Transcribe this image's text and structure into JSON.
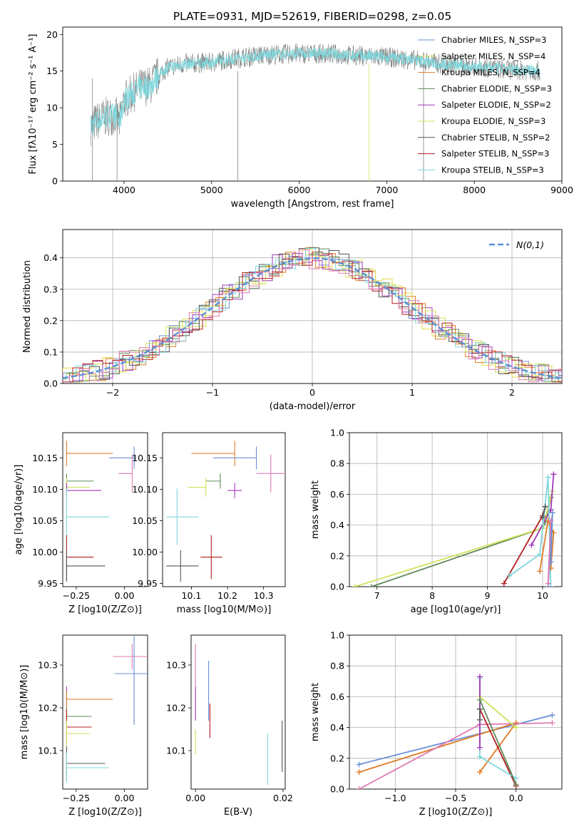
{
  "colors": {
    "chabrier_miles": "#6a8fd8",
    "salpeter_miles": "#e8d84a",
    "kroupa_miles": "#e07b24",
    "chabrier_elodie": "#5f8a5a",
    "salpeter_elodie": "#a236b8",
    "kroupa_elodie": "#cfe35a",
    "chabrier_stelib": "#555555",
    "salpeter_stelib": "#b21e1e",
    "kroupa_stelib": "#7fd7dc",
    "spectrum_grey": "#808080",
    "pink": "#e07ab0",
    "gauss": "#5b8fd6",
    "grid": "#b0b0b0"
  },
  "chart_data": [
    {
      "id": "spectrum",
      "type": "line",
      "title": "PLATE=0931, MJD=52619, FIBERID=0298, z=0.05",
      "xlabel": "wavelength [Angstrom, rest frame]",
      "ylabel": "Flux [fλ10⁻¹⁷ erg cm⁻² s⁻¹ A⁻¹]",
      "xlim": [
        3300,
        9000
      ],
      "ylim": [
        0,
        21
      ],
      "xticks": [
        4000,
        5000,
        6000,
        7000,
        8000,
        9000
      ],
      "yticks": [
        0,
        5,
        10,
        15,
        20
      ],
      "grid": false,
      "legend_position": "top-right",
      "series": [
        {
          "name": "Chabrier MILES, N_SSP=3",
          "color_key": "chabrier_miles"
        },
        {
          "name": "Salpeter MILES, N_SSP=4",
          "color_key": "salpeter_miles"
        },
        {
          "name": "Kroupa MILES, N_SSP=4",
          "color_key": "kroupa_miles"
        },
        {
          "name": "Chabrier ELODIE, N_SSP=3",
          "color_key": "chabrier_elodie"
        },
        {
          "name": "Salpeter ELODIE, N_SSP=2",
          "color_key": "salpeter_elodie"
        },
        {
          "name": "Kroupa ELODIE, N_SSP=3",
          "color_key": "kroupa_elodie"
        },
        {
          "name": "Chabrier STELIB, N_SSP=2",
          "color_key": "chabrier_stelib"
        },
        {
          "name": "Salpeter STELIB, N_SSP=3",
          "color_key": "salpeter_stelib"
        },
        {
          "name": "Kroupa STELIB, N_SSP=3",
          "color_key": "kroupa_stelib"
        }
      ],
      "continuum": {
        "x": [
          3620,
          3700,
          3800,
          3900,
          3950,
          4000,
          4100,
          4200,
          4300,
          4400,
          4500,
          4700,
          5000,
          5300,
          5600,
          6000,
          6300,
          6500,
          7000,
          7400,
          7600,
          8000,
          8400,
          8750
        ],
        "y": [
          7.5,
          8.2,
          8.8,
          9.0,
          8.0,
          11.0,
          12.0,
          12.8,
          13.0,
          14.5,
          15.5,
          16.0,
          16.2,
          16.8,
          17.2,
          17.4,
          17.4,
          17.2,
          16.9,
          16.4,
          16.0,
          15.6,
          15.2,
          15.0
        ]
      }
    },
    {
      "id": "residuals",
      "type": "histogram",
      "xlabel": "(data-model)/error",
      "ylabel": "Normed distribution",
      "xlim": [
        -2.5,
        2.5
      ],
      "ylim": [
        0,
        0.49
      ],
      "xticks": [
        -2,
        -1,
        0,
        1,
        2
      ],
      "yticks": [
        0.0,
        0.1,
        0.2,
        0.3,
        0.4
      ],
      "grid": true,
      "legend": "N(0,1)",
      "legend_position": "top-right",
      "gaussian": {
        "mean": 0,
        "sigma": 1
      }
    },
    {
      "id": "age_vs_Z",
      "type": "scatter",
      "xlabel": "Z [log10(Z/Z⊙)]",
      "ylabel": "age  [log10(age/yr)]",
      "xlim": [
        -0.32,
        0.12
      ],
      "ylim": [
        9.945,
        10.19
      ],
      "xticks": [
        -0.25,
        0.0
      ],
      "yticks": [
        9.95,
        10.0,
        10.05,
        10.1,
        10.15
      ],
      "points": [
        {
          "color_key": "kroupa_miles",
          "x": -0.3,
          "y": 10.157,
          "xerr": [
            0,
            0.24
          ],
          "yerr": 0.02
        },
        {
          "color_key": "chabrier_miles",
          "x": 0.05,
          "y": 10.15,
          "xerr": [
            0.13,
            0.0
          ],
          "yerr": 0.018
        },
        {
          "color_key": "pink",
          "x": 0.04,
          "y": 10.125,
          "xerr": [
            0.07,
            0.0
          ],
          "yerr": 0.03
        },
        {
          "color_key": "chabrier_elodie",
          "x": -0.3,
          "y": 10.113,
          "xerr": [
            0,
            0.14
          ],
          "yerr": 0.012
        },
        {
          "color_key": "kroupa_elodie",
          "x": -0.3,
          "y": 10.103,
          "xerr": [
            0,
            0.12
          ],
          "yerr": 0.015
        },
        {
          "color_key": "salpeter_elodie",
          "x": -0.3,
          "y": 10.098,
          "xerr": [
            0,
            0.18
          ],
          "yerr": 0.012
        },
        {
          "color_key": "kroupa_stelib",
          "x": -0.3,
          "y": 10.056,
          "xerr": [
            0,
            0.22
          ],
          "yerr": 0.045
        },
        {
          "color_key": "salpeter_stelib",
          "x": -0.3,
          "y": 9.992,
          "xerr": [
            0,
            0.14
          ],
          "yerr": 0.035
        },
        {
          "color_key": "chabrier_stelib",
          "x": -0.3,
          "y": 9.978,
          "xerr": [
            0,
            0.2
          ],
          "yerr": 0.025
        }
      ]
    },
    {
      "id": "age_vs_mass",
      "type": "scatter",
      "xlabel": "mass [log10(M/M⊙)]",
      "ylim": [
        9.945,
        10.19
      ],
      "xlim": [
        10.02,
        10.36
      ],
      "xticks": [
        10.1,
        10.2,
        10.3
      ],
      "yticks": [
        9.95,
        10.0,
        10.05,
        10.1,
        10.15
      ],
      "points": [
        {
          "color_key": "kroupa_miles",
          "x": 10.22,
          "y": 10.157,
          "xerr": [
            0.12,
            0.0
          ],
          "yerr": 0.02
        },
        {
          "color_key": "chabrier_miles",
          "x": 10.28,
          "y": 10.15,
          "xerr": [
            0.12,
            0.0
          ],
          "yerr": 0.018
        },
        {
          "color_key": "pink",
          "x": 10.32,
          "y": 10.125,
          "xerr": [
            0.04,
            0.04
          ],
          "yerr": 0.03
        },
        {
          "color_key": "chabrier_elodie",
          "x": 10.18,
          "y": 10.113,
          "xerr": [
            0.04,
            0.0
          ],
          "yerr": 0.012
        },
        {
          "color_key": "kroupa_elodie",
          "x": 10.14,
          "y": 10.103,
          "xerr": [
            0.05,
            0.0
          ],
          "yerr": 0.015
        },
        {
          "color_key": "salpeter_elodie",
          "x": 10.22,
          "y": 10.098,
          "xerr": [
            0.02,
            0.02
          ],
          "yerr": 0.012
        },
        {
          "color_key": "kroupa_stelib",
          "x": 10.06,
          "y": 10.056,
          "xerr": [
            0.03,
            0.06
          ],
          "yerr": 0.045
        },
        {
          "color_key": "salpeter_stelib",
          "x": 10.155,
          "y": 9.992,
          "xerr": [
            0.03,
            0.03
          ],
          "yerr": 0.035
        },
        {
          "color_key": "chabrier_stelib",
          "x": 10.07,
          "y": 9.978,
          "xerr": [
            0.04,
            0.05
          ],
          "yerr": 0.025
        }
      ]
    },
    {
      "id": "weight_vs_age",
      "type": "line",
      "xlabel": "age  [log10(age/yr)]",
      "ylabel": "mass weight",
      "xlim": [
        6.5,
        10.35
      ],
      "ylim": [
        0,
        1.0
      ],
      "xticks": [
        7,
        8,
        9,
        10
      ],
      "yticks": [
        0.0,
        0.2,
        0.4,
        0.6,
        0.8,
        1.0
      ],
      "grid": true,
      "lines": [
        {
          "color_key": "chabrier_elodie",
          "x": [
            6.9,
            10.0,
            10.05,
            10.15
          ],
          "y": [
            0.0,
            0.38,
            0.42,
            0.58
          ]
        },
        {
          "color_key": "kroupa_elodie",
          "x": [
            6.6,
            10.0,
            10.18
          ],
          "y": [
            0.0,
            0.38,
            0.62
          ]
        },
        {
          "color_key": "salpeter_stelib",
          "x": [
            9.3,
            10.0,
            10.05
          ],
          "y": [
            0.02,
            0.46,
            0.52
          ]
        },
        {
          "color_key": "salpeter_elodie",
          "x": [
            9.8,
            10.15,
            10.2
          ],
          "y": [
            0.27,
            0.5,
            0.73
          ]
        },
        {
          "color_key": "kroupa_stelib",
          "x": [
            9.4,
            9.95,
            10.1,
            10.15
          ],
          "y": [
            0.07,
            0.21,
            0.71,
            0.0
          ]
        },
        {
          "color_key": "kroupa_miles",
          "x": [
            9.95,
            10.1,
            10.2,
            10.15
          ],
          "y": [
            0.1,
            0.43,
            0.35,
            0.12
          ]
        },
        {
          "color_key": "chabrier_miles",
          "x": [
            10.1,
            10.18,
            10.15
          ],
          "y": [
            0.0,
            0.48,
            0.16
          ]
        },
        {
          "color_key": "chabrier_stelib",
          "x": [
            10.0,
            10.05
          ],
          "y": [
            0.45,
            0.52
          ]
        },
        {
          "color_key": "pink",
          "x": [
            10.1,
            10.15
          ],
          "y": [
            0.02,
            0.43
          ]
        }
      ]
    },
    {
      "id": "mass_vs_Z",
      "type": "scatter",
      "xlabel": "Z [log10(Z/Z⊙)]",
      "ylabel": "mass [log10(M/M⊙)]",
      "xlim": [
        -0.32,
        0.12
      ],
      "ylim": [
        10.01,
        10.37
      ],
      "xticks": [
        -0.25,
        0.0
      ],
      "yticks": [
        10.1,
        10.2,
        10.3
      ],
      "points": [
        {
          "color_key": "pink",
          "x": 0.04,
          "y": 10.32,
          "xerr": [
            0.1,
            0.12
          ],
          "yerr": 0.03
        },
        {
          "color_key": "chabrier_miles",
          "x": 0.05,
          "y": 10.28,
          "xerr": [
            0.1,
            0.12
          ],
          "yerr": 0.12
        },
        {
          "color_key": "salpeter_elodie",
          "x": -0.3,
          "y": 10.22,
          "xerr": [
            0,
            0.13
          ],
          "yerr": 0.03
        },
        {
          "color_key": "kroupa_miles",
          "x": -0.3,
          "y": 10.22,
          "xerr": [
            0,
            0.24
          ],
          "yerr": 0.02
        },
        {
          "color_key": "chabrier_elodie",
          "x": -0.3,
          "y": 10.18,
          "xerr": [
            0,
            0.13
          ],
          "yerr": 0.02
        },
        {
          "color_key": "salpeter_stelib",
          "x": -0.3,
          "y": 10.155,
          "xerr": [
            0,
            0.13
          ],
          "yerr": 0.04
        },
        {
          "color_key": "kroupa_elodie",
          "x": -0.3,
          "y": 10.14,
          "xerr": [
            0,
            0.12
          ],
          "yerr": 0.03
        },
        {
          "color_key": "chabrier_stelib",
          "x": -0.3,
          "y": 10.07,
          "xerr": [
            0,
            0.2
          ],
          "yerr": 0.04
        },
        {
          "color_key": "kroupa_stelib",
          "x": -0.3,
          "y": 10.06,
          "xerr": [
            0,
            0.22
          ],
          "yerr": 0.035
        }
      ]
    },
    {
      "id": "mass_vs_EBV",
      "type": "scatter",
      "xlabel": "E(B-V)",
      "xlim": [
        -0.001,
        0.0205
      ],
      "ylim": [
        10.01,
        10.37
      ],
      "xticks": [
        0.0,
        0.02
      ],
      "xtick_labels": [
        "0.00",
        "0.02"
      ],
      "yticks": [
        10.1,
        10.2,
        10.3
      ],
      "points": [
        {
          "color_key": "pink",
          "x": 0.0,
          "y": 10.3,
          "yerr": 0.05
        },
        {
          "color_key": "chabrier_miles",
          "x": 0.003,
          "y": 10.24,
          "yerr": 0.07
        },
        {
          "color_key": "salpeter_stelib",
          "x": 0.0033,
          "y": 10.17,
          "yerr": 0.04
        },
        {
          "color_key": "salpeter_elodie",
          "x": 0.0,
          "y": 10.21,
          "yerr": 0.04
        },
        {
          "color_key": "kroupa_elodie",
          "x": 0.0,
          "y": 10.12,
          "yerr": 0.03
        },
        {
          "color_key": "kroupa_stelib",
          "x": 0.0165,
          "y": 10.08,
          "yerr": 0.06
        },
        {
          "color_key": "chabrier_stelib",
          "x": 0.0198,
          "y": 10.11,
          "yerr": 0.06
        }
      ]
    },
    {
      "id": "weight_vs_Z",
      "type": "line",
      "xlabel": "Z [log10(Z/Z⊙)]",
      "ylabel": "mass weight",
      "xlim": [
        -1.38,
        0.38
      ],
      "ylim": [
        0,
        1.0
      ],
      "xticks": [
        -1.0,
        -0.5,
        0.0
      ],
      "yticks": [
        0.0,
        0.2,
        0.4,
        0.6,
        0.8,
        1.0
      ],
      "grid": true,
      "lines": [
        {
          "color_key": "chabrier_miles",
          "x": [
            -1.3,
            0.3
          ],
          "y": [
            0.16,
            0.48
          ]
        },
        {
          "color_key": "kroupa_miles",
          "x": [
            -1.3,
            0.0,
            -0.3,
            0.0
          ],
          "y": [
            0.11,
            0.43,
            0.11,
            0.43
          ]
        },
        {
          "color_key": "pink",
          "x": [
            -1.3,
            -0.3,
            0.3
          ],
          "y": [
            0.0,
            0.42,
            0.43
          ]
        },
        {
          "color_key": "salpeter_stelib",
          "x": [
            -0.3,
            0.0
          ],
          "y": [
            0.52,
            0.02
          ]
        },
        {
          "color_key": "kroupa_stelib",
          "x": [
            -0.3,
            -0.3,
            0.0
          ],
          "y": [
            0.72,
            0.21,
            0.07
          ]
        },
        {
          "color_key": "kroupa_elodie",
          "x": [
            -0.3,
            0.0
          ],
          "y": [
            0.6,
            0.4
          ]
        },
        {
          "color_key": "salpeter_elodie",
          "x": [
            -0.3,
            -0.3
          ],
          "y": [
            0.73,
            0.27
          ]
        },
        {
          "color_key": "chabrier_elodie",
          "x": [
            -0.3,
            0.0
          ],
          "y": [
            0.58,
            0.03
          ]
        },
        {
          "color_key": "chabrier_stelib",
          "x": [
            -0.3,
            -0.3
          ],
          "y": [
            0.52,
            0.45
          ]
        }
      ]
    }
  ]
}
